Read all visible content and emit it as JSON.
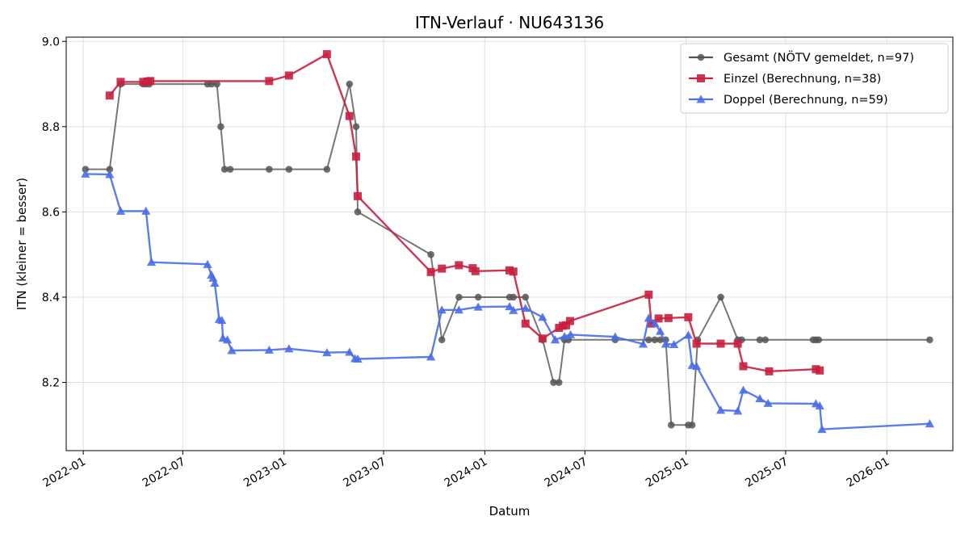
{
  "chart_data": {
    "type": "line",
    "title": "ITN-Verlauf · NU643136",
    "xlabel": "Datum",
    "ylabel": "ITN  (kleiner = besser)",
    "x_type": "date",
    "xlim": [
      "2021-12-01",
      "2026-05-01"
    ],
    "ylim": [
      8.04,
      9.01
    ],
    "yticks": [
      8.2,
      8.4,
      8.6,
      8.8,
      9.0
    ],
    "ytick_labels": [
      "8.2",
      "8.4",
      "8.6",
      "8.8",
      "9.0"
    ],
    "xticks": [
      "2022-01-01",
      "2022-07-01",
      "2023-01-01",
      "2023-07-01",
      "2024-01-01",
      "2024-07-01",
      "2025-01-01",
      "2025-07-01",
      "2026-01-01"
    ],
    "xtick_labels": [
      "2022-01",
      "2022-07",
      "2023-01",
      "2023-07",
      "2024-01",
      "2024-07",
      "2025-01",
      "2025-07",
      "2026-01"
    ],
    "grid": true,
    "legend_position": "top-right",
    "series": [
      {
        "name": "Gesamt (NÖTV gemeldet, n=97)",
        "color": "#555555",
        "marker": "circle",
        "points": [
          [
            "2022-01-05",
            8.7
          ],
          [
            "2022-02-18",
            8.7
          ],
          [
            "2022-03-10",
            8.9
          ],
          [
            "2022-04-20",
            8.9
          ],
          [
            "2022-04-25",
            8.9
          ],
          [
            "2022-05-01",
            8.9
          ],
          [
            "2022-08-15",
            8.9
          ],
          [
            "2022-08-22",
            8.9
          ],
          [
            "2022-09-01",
            8.9
          ],
          [
            "2022-09-08",
            8.8
          ],
          [
            "2022-09-15",
            8.7
          ],
          [
            "2022-09-25",
            8.7
          ],
          [
            "2022-12-05",
            8.7
          ],
          [
            "2023-01-10",
            8.7
          ],
          [
            "2023-03-20",
            8.7
          ],
          [
            "2023-04-30",
            8.9
          ],
          [
            "2023-05-12",
            8.8
          ],
          [
            "2023-05-15",
            8.6
          ],
          [
            "2023-09-25",
            8.5
          ],
          [
            "2023-10-15",
            8.3
          ],
          [
            "2023-11-15",
            8.4
          ],
          [
            "2023-12-20",
            8.4
          ],
          [
            "2024-02-15",
            8.4
          ],
          [
            "2024-02-22",
            8.4
          ],
          [
            "2024-03-15",
            8.4
          ],
          [
            "2024-04-15",
            8.3
          ],
          [
            "2024-05-05",
            8.2
          ],
          [
            "2024-05-15",
            8.2
          ],
          [
            "2024-05-25",
            8.3
          ],
          [
            "2024-06-01",
            8.3
          ],
          [
            "2024-08-25",
            8.3
          ],
          [
            "2024-10-25",
            8.3
          ],
          [
            "2024-11-05",
            8.3
          ],
          [
            "2024-11-15",
            8.3
          ],
          [
            "2024-11-25",
            8.3
          ],
          [
            "2024-12-05",
            8.1
          ],
          [
            "2025-01-05",
            8.1
          ],
          [
            "2025-01-12",
            8.1
          ],
          [
            "2025-01-22",
            8.3
          ],
          [
            "2025-03-05",
            8.4
          ],
          [
            "2025-04-05",
            8.3
          ],
          [
            "2025-04-12",
            8.3
          ],
          [
            "2025-05-15",
            8.3
          ],
          [
            "2025-05-25",
            8.3
          ],
          [
            "2025-08-20",
            8.3
          ],
          [
            "2025-08-25",
            8.3
          ],
          [
            "2025-08-30",
            8.3
          ],
          [
            "2026-03-20",
            8.3
          ]
        ]
      },
      {
        "name": "Einzel (Berechnung, n=38)",
        "color": "#c8203f",
        "marker": "square",
        "points": [
          [
            "2022-02-18",
            8.873
          ],
          [
            "2022-03-10",
            8.905
          ],
          [
            "2022-04-20",
            8.905
          ],
          [
            "2022-04-28",
            8.906
          ],
          [
            "2022-05-03",
            8.907
          ],
          [
            "2022-12-05",
            8.907
          ],
          [
            "2023-01-10",
            8.92
          ],
          [
            "2023-03-20",
            8.97
          ],
          [
            "2023-04-30",
            8.825
          ],
          [
            "2023-05-12",
            8.73
          ],
          [
            "2023-05-15",
            8.637
          ],
          [
            "2023-09-25",
            8.459
          ],
          [
            "2023-10-15",
            8.467
          ],
          [
            "2023-11-15",
            8.475
          ],
          [
            "2023-12-10",
            8.468
          ],
          [
            "2023-12-15",
            8.461
          ],
          [
            "2024-02-15",
            8.463
          ],
          [
            "2024-02-22",
            8.46
          ],
          [
            "2024-03-15",
            8.338
          ],
          [
            "2024-04-15",
            8.303
          ],
          [
            "2024-05-15",
            8.328
          ],
          [
            "2024-05-22",
            8.333
          ],
          [
            "2024-05-28",
            8.334
          ],
          [
            "2024-06-04",
            8.344
          ],
          [
            "2024-10-25",
            8.406
          ],
          [
            "2024-10-30",
            8.338
          ],
          [
            "2024-11-12",
            8.35
          ],
          [
            "2024-11-30",
            8.351
          ],
          [
            "2025-01-05",
            8.353
          ],
          [
            "2025-01-20",
            8.291
          ],
          [
            "2025-03-05",
            8.291
          ],
          [
            "2025-04-05",
            8.291
          ],
          [
            "2025-04-15",
            8.238
          ],
          [
            "2025-06-01",
            8.226
          ],
          [
            "2025-08-25",
            8.231
          ],
          [
            "2025-09-01",
            8.228
          ]
        ]
      },
      {
        "name": "Doppel (Berechnung, n=59)",
        "color": "#4a6ee8",
        "marker": "triangle",
        "points": [
          [
            "2022-01-05",
            8.689
          ],
          [
            "2022-02-18",
            8.688
          ],
          [
            "2022-03-10",
            8.602
          ],
          [
            "2022-04-25",
            8.602
          ],
          [
            "2022-05-05",
            8.482
          ],
          [
            "2022-08-15",
            8.477
          ],
          [
            "2022-08-22",
            8.452
          ],
          [
            "2022-08-25",
            8.445
          ],
          [
            "2022-08-28",
            8.433
          ],
          [
            "2022-09-05",
            8.348
          ],
          [
            "2022-09-10",
            8.346
          ],
          [
            "2022-09-12",
            8.304
          ],
          [
            "2022-09-20",
            8.3
          ],
          [
            "2022-09-28",
            8.275
          ],
          [
            "2022-12-05",
            8.276
          ],
          [
            "2023-01-10",
            8.279
          ],
          [
            "2023-03-20",
            8.27
          ],
          [
            "2023-04-30",
            8.271
          ],
          [
            "2023-05-10",
            8.256
          ],
          [
            "2023-05-15",
            8.255
          ],
          [
            "2023-09-25",
            8.26
          ],
          [
            "2023-10-15",
            8.37
          ],
          [
            "2023-11-15",
            8.37
          ],
          [
            "2023-12-20",
            8.377
          ],
          [
            "2024-02-15",
            8.378
          ],
          [
            "2024-02-22",
            8.369
          ],
          [
            "2024-03-15",
            8.374
          ],
          [
            "2024-04-15",
            8.353
          ],
          [
            "2024-05-08",
            8.3
          ],
          [
            "2024-05-25",
            8.308
          ],
          [
            "2024-06-05",
            8.312
          ],
          [
            "2024-08-25",
            8.307
          ],
          [
            "2024-10-15",
            8.29
          ],
          [
            "2024-10-25",
            8.351
          ],
          [
            "2024-11-05",
            8.339
          ],
          [
            "2024-11-15",
            8.32
          ],
          [
            "2024-11-25",
            8.29
          ],
          [
            "2024-12-10",
            8.289
          ],
          [
            "2025-01-05",
            8.311
          ],
          [
            "2025-01-12",
            8.24
          ],
          [
            "2025-01-20",
            8.238
          ],
          [
            "2025-03-05",
            8.135
          ],
          [
            "2025-04-05",
            8.133
          ],
          [
            "2025-04-15",
            8.182
          ],
          [
            "2025-05-15",
            8.162
          ],
          [
            "2025-05-30",
            8.151
          ],
          [
            "2025-08-25",
            8.15
          ],
          [
            "2025-09-01",
            8.145
          ],
          [
            "2025-09-05",
            8.09
          ],
          [
            "2026-03-20",
            8.103
          ]
        ]
      }
    ]
  }
}
